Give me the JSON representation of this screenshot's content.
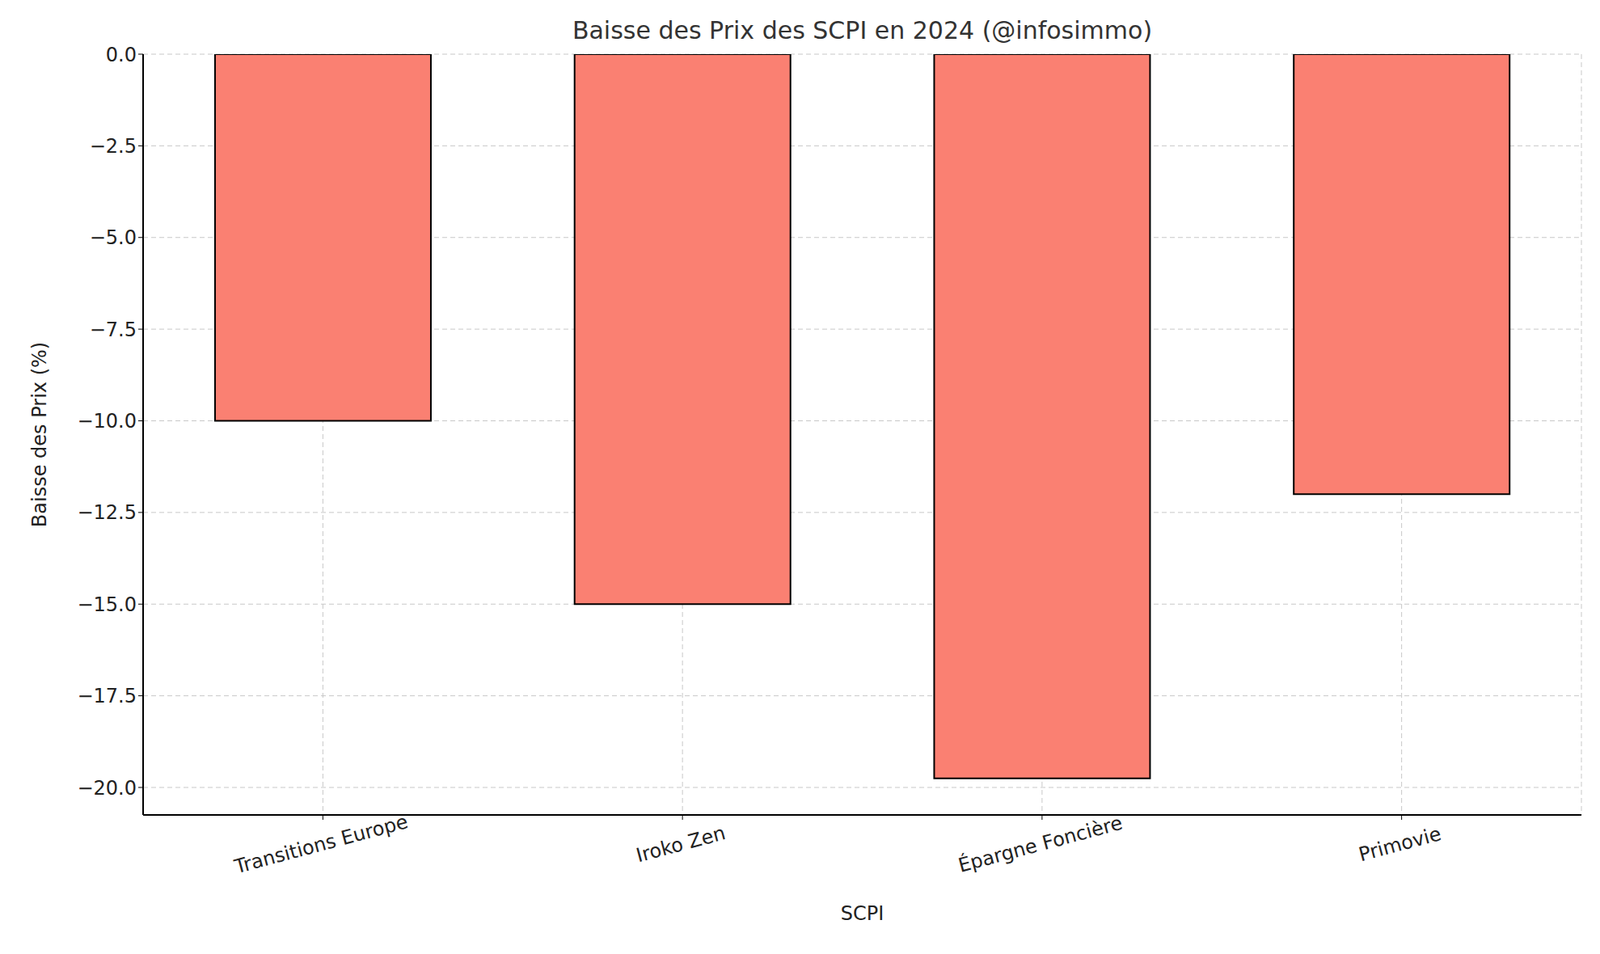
{
  "chart_data": {
    "type": "bar",
    "title": "Baisse des Prix des SCPI en 2024 (@infosimmo)",
    "x_label": "SCPI",
    "y_label": "Baisse des Prix (%)",
    "categories": [
      "Transitions Europe",
      "Iroko Zen",
      "Épargne Foncière",
      "Primovie"
    ],
    "values": [
      -10,
      -15,
      -19.75,
      -12
    ],
    "color": "#fa8072",
    "ylim": [
      -20.75,
      0
    ],
    "yticks": [
      {
        "value": 0,
        "label": "0.0"
      },
      {
        "value": -2.5,
        "label": "−2.5"
      },
      {
        "value": -5,
        "label": "−5.0"
      },
      {
        "value": -7.5,
        "label": "−7.5"
      },
      {
        "value": -10,
        "label": "−10.0"
      },
      {
        "value": -12.5,
        "label": "−12.5"
      },
      {
        "value": -15,
        "label": "−15.0"
      },
      {
        "value": -17.5,
        "label": "−17.5"
      },
      {
        "value": -20,
        "label": "−20.0"
      }
    ],
    "grid": true
  }
}
